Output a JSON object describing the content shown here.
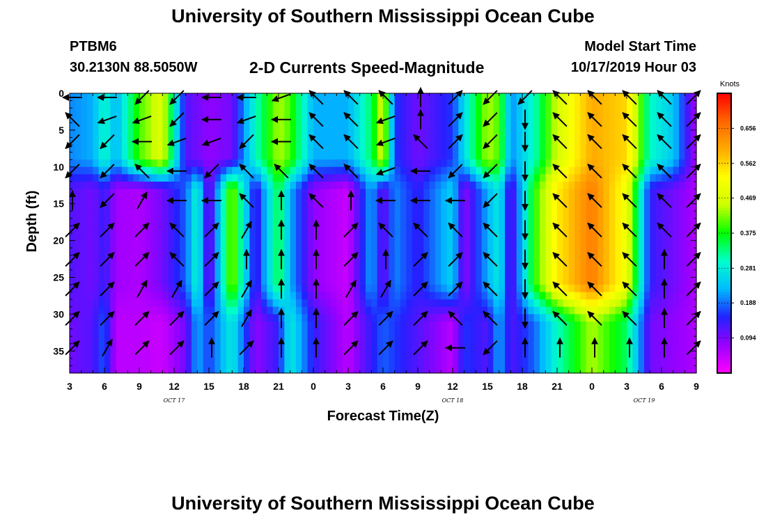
{
  "header": {
    "title": "University of Southern Mississippi Ocean Cube",
    "station_id": "PTBM6",
    "station_coords": "30.2130N 88.5050W",
    "subtitle": "2-D Currents Speed-Magnitude",
    "model_start_label": "Model Start Time",
    "model_start_value": "10/17/2019 Hour 03"
  },
  "footer": {
    "title": "University of Southern Mississippi Ocean Cube"
  },
  "chart_data": {
    "type": "heatmap",
    "title": "2-D Currents Speed-Magnitude",
    "xlabel": "Forecast Time(Z)",
    "ylabel": "Depth (ft)",
    "x_range_hours": [
      0,
      54
    ],
    "x_tick_labels": [
      "3",
      "6",
      "9",
      "12",
      "15",
      "18",
      "21",
      "0",
      "3",
      "6",
      "9",
      "12",
      "15",
      "18",
      "21",
      "0",
      "3",
      "6",
      "9"
    ],
    "date_labels": [
      {
        "text": "OCT 17",
        "at_hour": 9
      },
      {
        "text": "OCT 18",
        "at_hour": 33
      },
      {
        "text": "OCT 19",
        "at_hour": 49.5
      }
    ],
    "y_range_ft": [
      0,
      38
    ],
    "y_ticks": [
      0,
      5,
      10,
      15,
      20,
      25,
      30,
      35
    ],
    "colorbar": {
      "unit": "Knots",
      "range": [
        0,
        0.75
      ],
      "ticks": [
        0.094,
        0.188,
        0.281,
        0.375,
        0.469,
        0.562,
        0.656
      ],
      "colors": [
        "#ff00ff",
        "#9900ff",
        "#2222ff",
        "#00bbff",
        "#00ffcc",
        "#00ff00",
        "#ccff00",
        "#ffff00",
        "#ffaa00",
        "#ff6600",
        "#ff0000"
      ]
    },
    "speed_profiles_hours": [
      0,
      2,
      3,
      4,
      6,
      8,
      10,
      11,
      12,
      14,
      16,
      18,
      19,
      21,
      24,
      26,
      27,
      28,
      30,
      33,
      34,
      36,
      37,
      38,
      40,
      42,
      45,
      48,
      50,
      52,
      54
    ],
    "speed_profiles": [
      {
        "h": 0,
        "top": 0.2,
        "mid": 0.12,
        "bot": 0.1
      },
      {
        "h": 2,
        "top": 0.22,
        "mid": 0.1,
        "bot": 0.12
      },
      {
        "h": 3,
        "top": 0.3,
        "mid": 0.14,
        "bot": 0.18
      },
      {
        "h": 4,
        "top": 0.22,
        "mid": 0.07,
        "bot": 0.05
      },
      {
        "h": 6,
        "top": 0.4,
        "mid": 0.06,
        "bot": 0.05
      },
      {
        "h": 8,
        "top": 0.48,
        "mid": 0.1,
        "bot": 0.04
      },
      {
        "h": 10,
        "top": 0.12,
        "mid": 0.18,
        "bot": 0.1
      },
      {
        "h": 11,
        "top": 0.1,
        "mid": 0.3,
        "bot": 0.22
      },
      {
        "h": 12,
        "top": 0.08,
        "mid": 0.08,
        "bot": 0.16
      },
      {
        "h": 14,
        "top": 0.1,
        "mid": 0.44,
        "bot": 0.28
      },
      {
        "h": 16,
        "top": 0.3,
        "mid": 0.12,
        "bot": 0.08
      },
      {
        "h": 18,
        "top": 0.44,
        "mid": 0.36,
        "bot": 0.14
      },
      {
        "h": 19,
        "top": 0.4,
        "mid": 0.22,
        "bot": 0.28
      },
      {
        "h": 21,
        "top": 0.22,
        "mid": 0.08,
        "bot": 0.14
      },
      {
        "h": 24,
        "top": 0.22,
        "mid": 0.04,
        "bot": 0.05
      },
      {
        "h": 26,
        "top": 0.34,
        "mid": 0.22,
        "bot": 0.14
      },
      {
        "h": 27,
        "top": 0.48,
        "mid": 0.1,
        "bot": 0.18
      },
      {
        "h": 28,
        "top": 0.16,
        "mid": 0.2,
        "bot": 0.16
      },
      {
        "h": 30,
        "top": 0.1,
        "mid": 0.14,
        "bot": 0.12
      },
      {
        "h": 33,
        "top": 0.16,
        "mid": 0.25,
        "bot": 0.05
      },
      {
        "h": 34,
        "top": 0.26,
        "mid": 0.08,
        "bot": 0.16
      },
      {
        "h": 36,
        "top": 0.44,
        "mid": 0.22,
        "bot": 0.12
      },
      {
        "h": 37,
        "top": 0.4,
        "mid": 0.28,
        "bot": 0.22
      },
      {
        "h": 38,
        "top": 0.2,
        "mid": 0.1,
        "bot": 0.12
      },
      {
        "h": 40,
        "top": 0.3,
        "mid": 0.38,
        "bot": 0.18
      },
      {
        "h": 42,
        "top": 0.46,
        "mid": 0.54,
        "bot": 0.3
      },
      {
        "h": 45,
        "top": 0.6,
        "mid": 0.65,
        "bot": 0.44
      },
      {
        "h": 48,
        "top": 0.56,
        "mid": 0.5,
        "bot": 0.34
      },
      {
        "h": 50,
        "top": 0.3,
        "mid": 0.14,
        "bot": 0.1
      },
      {
        "h": 52,
        "top": 0.24,
        "mid": 0.1,
        "bot": 0.08
      },
      {
        "h": 54,
        "top": 0.06,
        "mid": 0.06,
        "bot": 0.06
      }
    ],
    "vector_columns_hours": [
      0,
      3,
      6,
      9,
      12,
      15,
      18,
      21,
      24,
      27,
      30,
      33,
      36,
      39,
      42,
      45,
      48,
      51,
      54
    ],
    "vector_depths_ft": [
      0,
      3,
      6,
      10,
      14,
      18,
      22,
      26,
      30,
      34
    ],
    "vector_directions_deg": [
      [
        180,
        135,
        225,
        225,
        90,
        45,
        45,
        45,
        45,
        45
      ],
      [
        180,
        200,
        225,
        225,
        225,
        45,
        45,
        45,
        45,
        60
      ],
      [
        225,
        200,
        180,
        135,
        60,
        45,
        45,
        60,
        45,
        45
      ],
      [
        225,
        225,
        200,
        180,
        180,
        135,
        135,
        60,
        45,
        45
      ],
      [
        180,
        180,
        200,
        225,
        180,
        45,
        45,
        45,
        45,
        90
      ],
      [
        180,
        200,
        225,
        135,
        135,
        60,
        90,
        60,
        60,
        45
      ],
      [
        200,
        180,
        180,
        135,
        90,
        90,
        90,
        90,
        90,
        90
      ],
      [
        135,
        135,
        135,
        135,
        135,
        90,
        90,
        90,
        90,
        90
      ],
      [
        135,
        135,
        135,
        135,
        90,
        45,
        45,
        60,
        45,
        45
      ],
      [
        135,
        200,
        200,
        200,
        180,
        135,
        90,
        60,
        45,
        45
      ],
      [
        90,
        90,
        135,
        180,
        180,
        135,
        45,
        45,
        45,
        45
      ],
      [
        45,
        45,
        45,
        225,
        180,
        135,
        45,
        45,
        135,
        180
      ],
      [
        225,
        225,
        225,
        225,
        225,
        135,
        135,
        135,
        135,
        225
      ],
      [
        225,
        270,
        270,
        270,
        270,
        270,
        270,
        270,
        270,
        90
      ],
      [
        135,
        135,
        135,
        135,
        135,
        135,
        135,
        135,
        135,
        90
      ],
      [
        135,
        135,
        135,
        135,
        135,
        135,
        135,
        135,
        135,
        90
      ],
      [
        135,
        135,
        135,
        135,
        135,
        135,
        135,
        135,
        135,
        90
      ],
      [
        135,
        135,
        135,
        135,
        135,
        135,
        90,
        90,
        90,
        90
      ],
      [
        45,
        45,
        45,
        45,
        45,
        45,
        45,
        45,
        45,
        45
      ]
    ]
  }
}
